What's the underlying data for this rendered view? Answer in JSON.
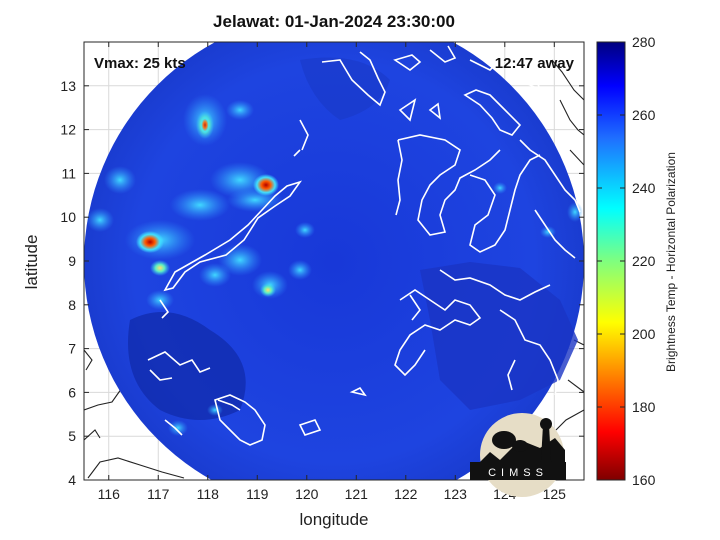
{
  "title": "Jelawat: 01-Jan-2024 23:30:00",
  "xlabel": "longitude",
  "ylabel": "latitude",
  "vmax_text": "Vmax: 25 kts",
  "away_text": "12:47 away",
  "colorbar": {
    "label": "Brightness Temp - Horizontal Polarization",
    "min": 160,
    "max": 280,
    "ticks": [
      160,
      180,
      200,
      220,
      240,
      260,
      280
    ],
    "colormap": "jet"
  },
  "logo_text": "CIMSS",
  "axes": {
    "xlim": [
      115.5,
      125.6
    ],
    "ylim": [
      4,
      14
    ],
    "xticks": [
      116,
      117,
      118,
      119,
      120,
      121,
      122,
      123,
      124,
      125
    ],
    "yticks": [
      4,
      5,
      6,
      7,
      8,
      9,
      10,
      11,
      12,
      13
    ],
    "grid": true
  },
  "colors": {
    "background_swath": "#1e3cd2",
    "coast": "#ffffff",
    "dark_land": "#0b1f8a",
    "warm_spot": "#d0141e"
  }
}
